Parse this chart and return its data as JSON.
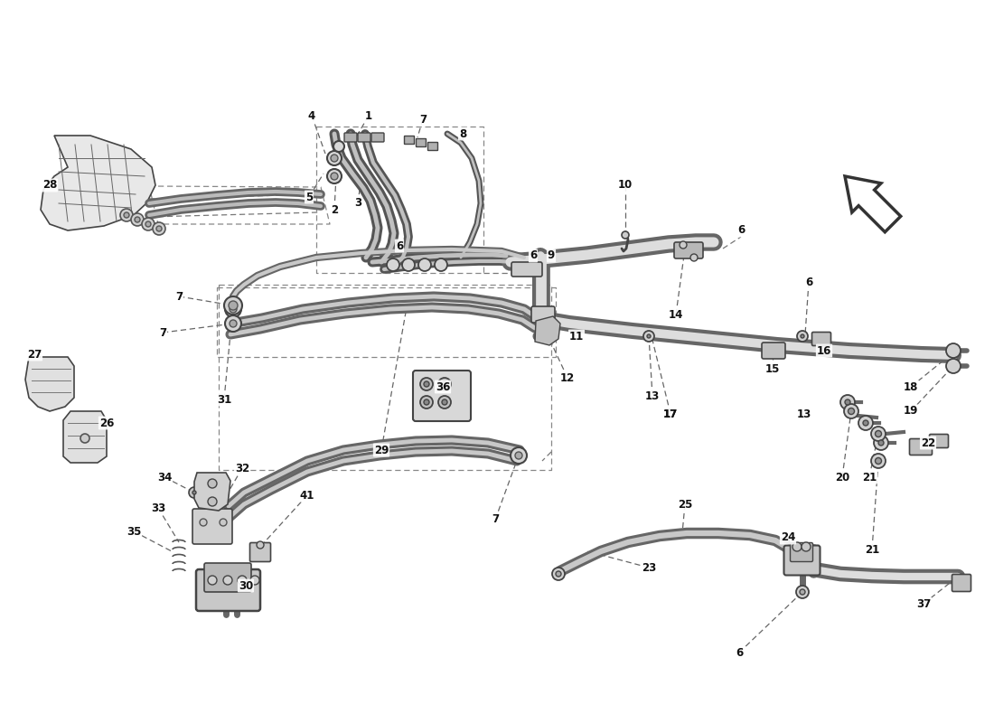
{
  "bg_color": "#ffffff",
  "line_color": "#333333",
  "part_color": "#888888",
  "label_color": "#111111",
  "arrow_color": "#444444",
  "dash_color": "#666666"
}
